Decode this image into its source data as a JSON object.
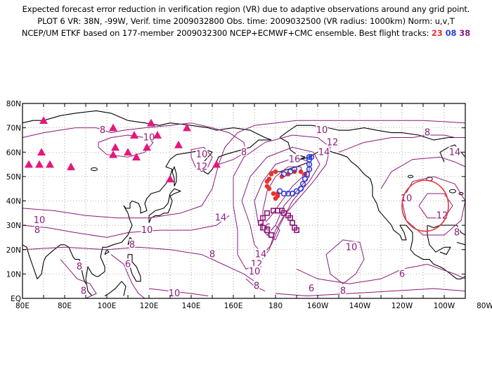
{
  "title": {
    "line1": "Expected forecast error reduction in verification region (VR) due to adaptive observations around any grid point.",
    "line2": "PLOT 6 VR: 38N, -99W, Verif. time 2009032800 Obs. time: 2009032500 (VR radius: 1000km) Norm: u,v,T",
    "line3_prefix": "NCEP/UM ETKF based on 177-member 2009032300 NCEP+ECMWF+CMC ensemble. Best flight tracks:",
    "tracks": [
      {
        "label": "23",
        "color": "#e8332d"
      },
      {
        "label": "08",
        "color": "#2f3fd8"
      },
      {
        "label": "38",
        "color": "#8b1a7a"
      }
    ]
  },
  "colors": {
    "contour": "#8b1a7a",
    "coast": "#000000",
    "grid": "#555555",
    "triangle": "#e6177c",
    "vr_circle": "#e8332d"
  },
  "axes": {
    "lon_labels": [
      "80E",
      "80E",
      "100E",
      "120E",
      "140E",
      "160E",
      "180",
      "160W",
      "140W",
      "120W",
      "100W",
      "80W"
    ],
    "lat_labels": [
      "80N",
      "70N",
      "60N",
      "50N",
      "40N",
      "30N",
      "20N",
      "10N",
      "EQ"
    ]
  },
  "contour_labels": [
    {
      "text": "8",
      "lon": 108,
      "lat": 69
    },
    {
      "text": "10",
      "lon": 130,
      "lat": 66
    },
    {
      "text": "8",
      "lon": 175,
      "lat": 60
    },
    {
      "text": "10",
      "lon": 155,
      "lat": 59
    },
    {
      "text": "12",
      "lon": 155,
      "lat": 54
    },
    {
      "text": "10",
      "lon": 212,
      "lat": 69
    },
    {
      "text": "12",
      "lon": 217,
      "lat": 64
    },
    {
      "text": "14",
      "lon": 213,
      "lat": 60
    },
    {
      "text": "16",
      "lon": 199,
      "lat": 57
    },
    {
      "text": "8",
      "lon": 262,
      "lat": 68
    },
    {
      "text": "14",
      "lon": 275,
      "lat": 60
    },
    {
      "text": "10",
      "lon": 252,
      "lat": 41
    },
    {
      "text": "12",
      "lon": 269,
      "lat": 34
    },
    {
      "text": "8",
      "lon": 276,
      "lat": 27
    },
    {
      "text": "14",
      "lon": 164,
      "lat": 33
    },
    {
      "text": "16",
      "lon": 185,
      "lat": 29
    },
    {
      "text": "14",
      "lon": 183,
      "lat": 18
    },
    {
      "text": "12",
      "lon": 181,
      "lat": 14
    },
    {
      "text": "10",
      "lon": 180,
      "lat": 11
    },
    {
      "text": "8",
      "lon": 181,
      "lat": 5
    },
    {
      "text": "10",
      "lon": 78,
      "lat": 32
    },
    {
      "text": "8",
      "lon": 77,
      "lat": 28
    },
    {
      "text": "10",
      "lon": 129,
      "lat": 28
    },
    {
      "text": "8",
      "lon": 122,
      "lat": 22
    },
    {
      "text": "8",
      "lon": 160,
      "lat": 18
    },
    {
      "text": "10",
      "lon": 226,
      "lat": 21
    },
    {
      "text": "6",
      "lon": 250,
      "lat": 10
    },
    {
      "text": "6",
      "lon": 207,
      "lat": 4
    },
    {
      "text": "8",
      "lon": 222,
      "lat": 3
    },
    {
      "text": "10",
      "lon": 142,
      "lat": 2
    },
    {
      "text": "8",
      "lon": 97,
      "lat": 13
    },
    {
      "text": "8",
      "lon": 99,
      "lat": 3
    },
    {
      "text": "6",
      "lon": 120,
      "lat": 14
    }
  ],
  "triangles": [
    [
      80,
      73
    ],
    [
      79,
      60
    ],
    [
      73,
      55
    ],
    [
      78,
      55
    ],
    [
      83,
      55
    ],
    [
      93,
      54
    ],
    [
      113,
      70
    ],
    [
      114,
      62
    ],
    [
      113,
      59
    ],
    [
      123,
      67
    ],
    [
      120,
      60
    ],
    [
      124,
      58
    ],
    [
      129,
      62
    ],
    [
      134,
      67
    ],
    [
      131,
      72
    ],
    [
      148,
      70
    ],
    [
      144,
      63
    ],
    [
      140,
      49
    ],
    [
      162,
      55
    ]
  ],
  "tracks_points": {
    "red": [
      [
        190,
        52
      ],
      [
        188,
        51
      ],
      [
        187,
        49
      ],
      [
        186,
        48
      ],
      [
        186,
        46
      ],
      [
        187,
        45
      ],
      [
        189,
        43
      ],
      [
        191,
        43
      ],
      [
        193,
        50
      ],
      [
        196,
        51
      ],
      [
        199,
        52
      ],
      [
        202,
        52
      ],
      [
        204,
        51
      ],
      [
        190,
        41
      ],
      [
        191,
        42
      ]
    ],
    "blue": [
      [
        206,
        57
      ],
      [
        206,
        58
      ],
      [
        207,
        58
      ],
      [
        206,
        55
      ],
      [
        206,
        53
      ],
      [
        205,
        51
      ],
      [
        204,
        49
      ],
      [
        203,
        47
      ],
      [
        202,
        45
      ],
      [
        200,
        44
      ],
      [
        198,
        43
      ],
      [
        196,
        43
      ],
      [
        194,
        43
      ],
      [
        192,
        44
      ],
      [
        194,
        51
      ],
      [
        197,
        52
      ],
      [
        199,
        53
      ]
    ],
    "purple": [
      [
        189,
        36
      ],
      [
        191,
        36
      ],
      [
        193,
        36
      ],
      [
        194,
        35
      ],
      [
        196,
        34
      ],
      [
        197,
        33
      ],
      [
        198,
        31
      ],
      [
        199,
        29
      ],
      [
        200,
        28
      ],
      [
        186,
        35
      ],
      [
        184,
        33
      ],
      [
        183,
        31
      ],
      [
        184,
        29
      ],
      [
        186,
        28
      ],
      [
        188,
        26
      ]
    ]
  },
  "vr_circle": {
    "lon": 261,
    "lat": 38,
    "radius_deg": 11
  }
}
